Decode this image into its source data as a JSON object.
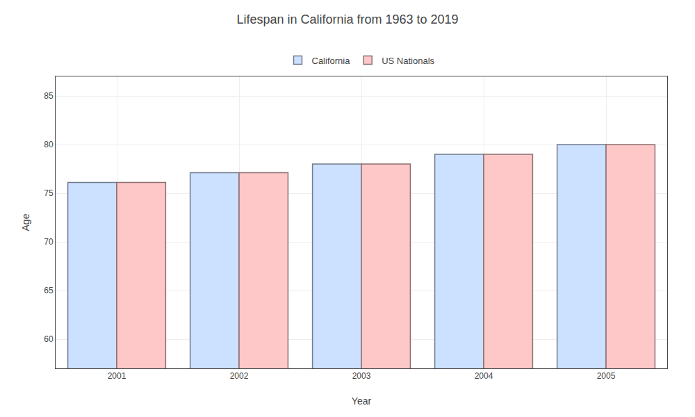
{
  "chart_data": {
    "type": "bar",
    "title": "Lifespan in California from 1963 to 2019",
    "x_label": "Year",
    "y_label": "Age",
    "categories": [
      "2001",
      "2002",
      "2003",
      "2004",
      "2005"
    ],
    "series": [
      {
        "name": "California",
        "color": "#cce0ff",
        "values": [
          76.1,
          77.1,
          78.0,
          79.0,
          80.0
        ]
      },
      {
        "name": "US Nationals",
        "color": "#ffc8c8",
        "values": [
          76.1,
          77.1,
          78.0,
          79.0,
          80.0
        ]
      }
    ],
    "ylim": [
      57,
      87
    ],
    "yticks": [
      60,
      65,
      70,
      75,
      80,
      85
    ],
    "grid": true,
    "legend": "top"
  }
}
